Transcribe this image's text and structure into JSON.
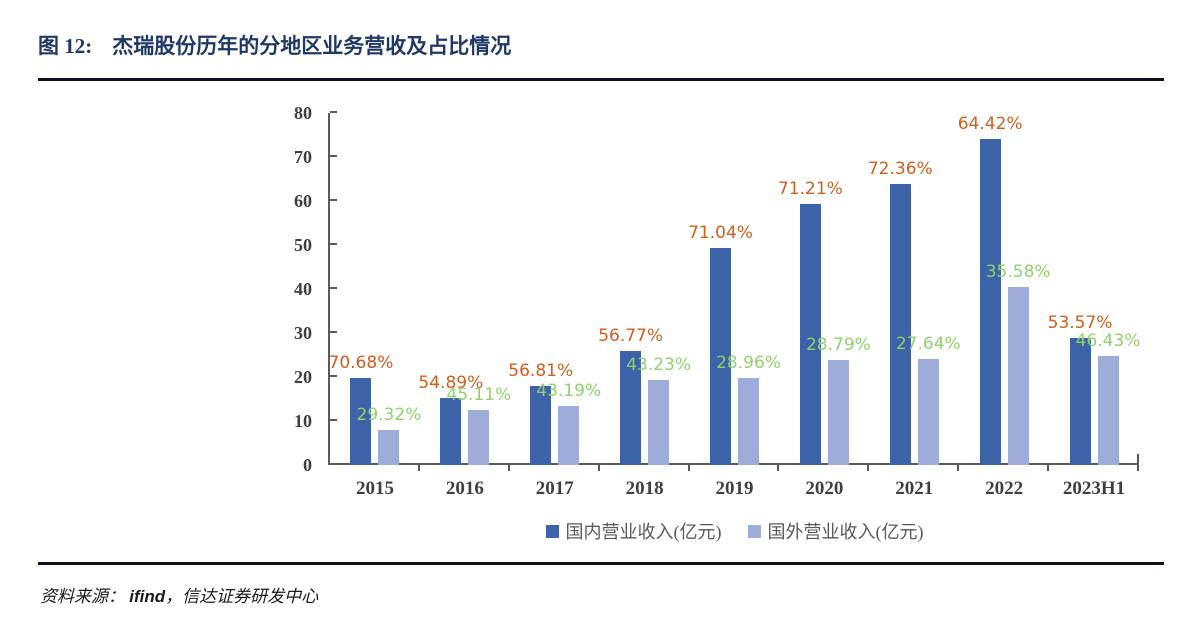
{
  "figure": {
    "label": "图 12:",
    "title": "杰瑞股份历年的分地区业务营收及占比情况"
  },
  "source": {
    "prefix": "资料来源： ",
    "brand": "ifind",
    "tail": "，信达证券研发中心"
  },
  "chart_data": {
    "type": "bar",
    "title": "杰瑞股份历年的分地区业务营收及占比情况",
    "categories": [
      "2015",
      "2016",
      "2017",
      "2018",
      "2019",
      "2020",
      "2021",
      "2022",
      "2023H1"
    ],
    "series": [
      {
        "name": "国内营业收入(亿元)",
        "color": "#3C62A8",
        "values": [
          19.8,
          15.3,
          17.9,
          25.8,
          49.2,
          59.2,
          63.7,
          73.9,
          28.8
        ],
        "pct_labels": [
          "70.68%",
          "54.89%",
          "56.81%",
          "56.77%",
          "71.04%",
          "71.21%",
          "72.36%",
          "64.42%",
          "53.57%"
        ],
        "label_color": "#CC5F1F"
      },
      {
        "name": "国外营业收入(亿元)",
        "color": "#9EACDA",
        "values": [
          8.0,
          12.5,
          13.4,
          19.3,
          19.8,
          23.9,
          24.0,
          40.5,
          24.8
        ],
        "pct_labels": [
          "29.32%",
          "45.11%",
          "43.19%",
          "43.23%",
          "28.96%",
          "28.79%",
          "27.64%",
          "35.58%",
          "46.43%"
        ],
        "label_color": "#90D06E"
      }
    ],
    "xlabel": "",
    "ylabel": "",
    "ylim": [
      0,
      80
    ],
    "ytick_step": 10,
    "yticks": [
      0,
      10,
      20,
      30,
      40,
      50,
      60,
      70,
      80
    ],
    "grid": false,
    "legend_position": "bottom",
    "axis_color": "#595959",
    "tick_label_color": "#3F3F3F"
  }
}
